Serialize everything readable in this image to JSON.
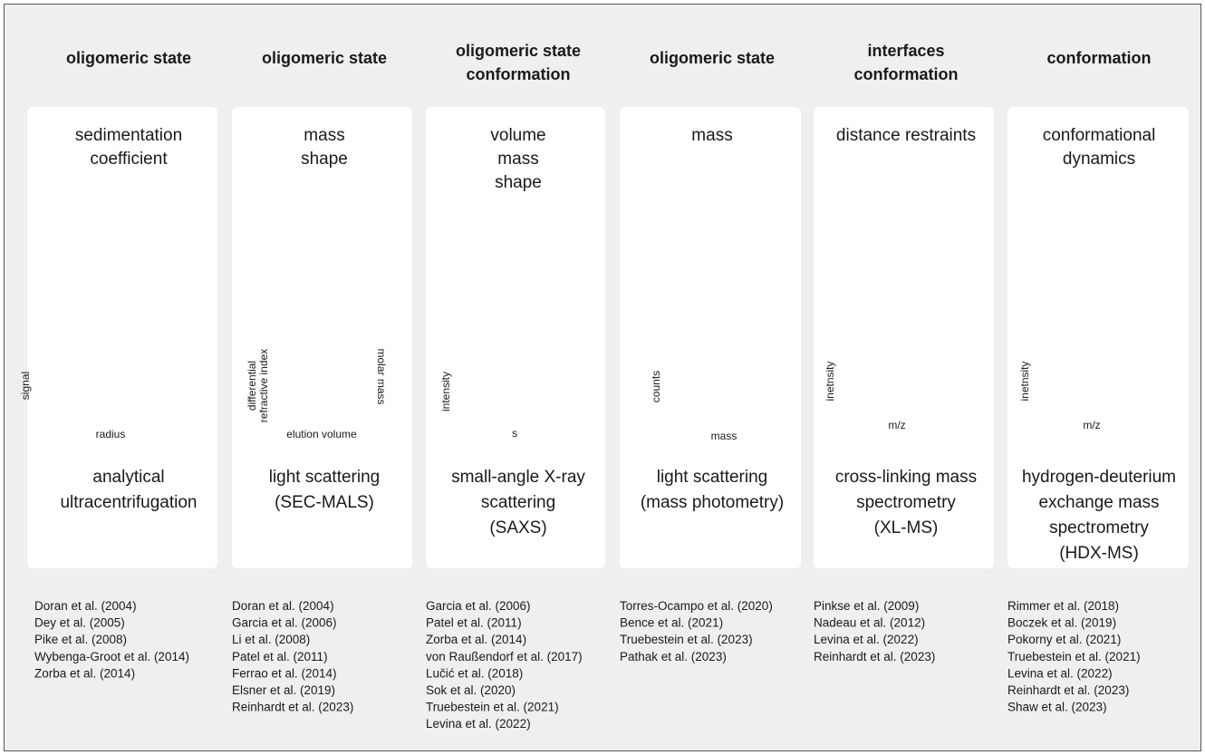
{
  "columns": [
    {
      "header": [
        "oligomeric state"
      ],
      "property": [
        "sedimentation",
        "coefficient"
      ],
      "plot": {
        "ylabel": [
          "signal"
        ],
        "xlabel": "radius"
      },
      "method": [
        "analytical",
        "ultracentrifugation"
      ],
      "references": [
        "Doran et al. (2004)",
        "Dey et al. (2005)",
        "Pike et al. (2008)",
        "Wybenga-Groot et al. (2014)",
        "Zorba et al. (2014)"
      ]
    },
    {
      "header": [
        "oligomeric state"
      ],
      "property": [
        "mass",
        "shape"
      ],
      "plot": {
        "ylabel": [
          "differential",
          "refractive index"
        ],
        "y2label": "molar mass",
        "xlabel": "elution volume"
      },
      "method": [
        "light scattering",
        "(SEC-MALS)"
      ],
      "references": [
        "Doran et al. (2004)",
        "Garcia et al. (2006)",
        "Li et al. (2008)",
        "Patel et al. (2011)",
        "Ferrao et al. (2014)",
        "Elsner et al. (2019)",
        "Reinhardt et al. (2023)"
      ]
    },
    {
      "header": [
        "oligomeric state",
        "conformation"
      ],
      "property": [
        "volume",
        "mass",
        "shape"
      ],
      "plot": {
        "ylabel": [
          "intensity"
        ],
        "xlabel": "s"
      },
      "method": [
        "small-angle X-ray",
        "scattering",
        "(SAXS)"
      ],
      "references": [
        "Garcia et al. (2006)",
        "Patel et al. (2011)",
        "Zorba et al. (2014)",
        "von Raußendorf et al. (2017)",
        "Lučić et al. (2018)",
        "Sok et al. (2020)",
        "Truebestein et al. (2021)",
        "Levina et al. (2022)"
      ]
    },
    {
      "header": [
        "oligomeric state"
      ],
      "property": [
        "mass"
      ],
      "plot": {
        "ylabel": [
          "counts"
        ],
        "xlabel": "mass"
      },
      "method": [
        "light scattering",
        "(mass photometry)"
      ],
      "references": [
        "Torres-Ocampo et al. (2020)",
        "Bence et al. (2021)",
        "Truebestein et al. (2023)",
        "Pathak et al. (2023)"
      ]
    },
    {
      "header": [
        "interfaces",
        "conformation"
      ],
      "property": [
        "distance restraints"
      ],
      "plot": {
        "ylabel": [
          "inetnsity"
        ],
        "xlabel": "m/z"
      },
      "method": [
        "cross-linking mass",
        "spectrometry",
        "(XL-MS)"
      ],
      "references": [
        "Pinkse et al. (2009)",
        "Nadeau et al. (2012)",
        "Levina et al. (2022)",
        "Reinhardt et al. (2023)"
      ]
    },
    {
      "header": [
        "conformation"
      ],
      "property": [
        "conformational",
        "dynamics"
      ],
      "plot": {
        "ylabel": [
          "inetnsity"
        ],
        "xlabel": "m/z"
      },
      "method": [
        "hydrogen-deuterium",
        "exchange mass",
        "spectrometry",
        "(HDX-MS)"
      ],
      "references": [
        "Rimmer et al. (2018)",
        "Boczek et al. (2019)",
        "Pokorny et al. (2021)",
        "Truebestein et al. (2021)",
        "Levina et al. (2022)",
        "Reinhardt et al. (2023)",
        "Shaw et al. (2023)"
      ]
    }
  ]
}
